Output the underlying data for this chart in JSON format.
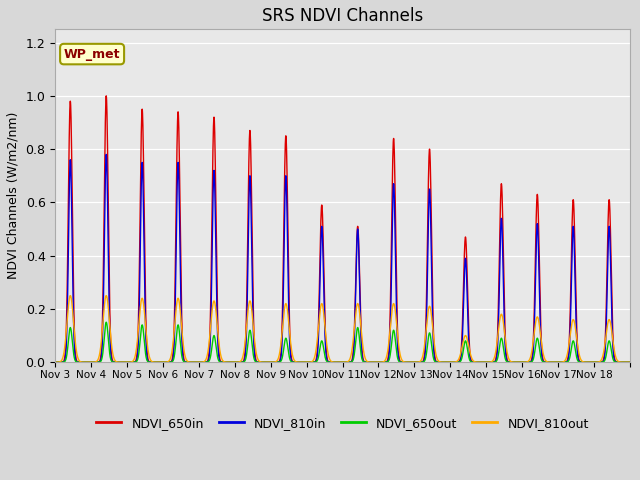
{
  "title": "SRS NDVI Channels",
  "ylabel": "NDVI Channels (W/m2/nm)",
  "annotation": "WP_met",
  "ylim": [
    0.0,
    1.25
  ],
  "fig_bg": "#d8d8d8",
  "plot_bg": "#e8e8e8",
  "colors": {
    "NDVI_650in": "#dd0000",
    "NDVI_810in": "#0000dd",
    "NDVI_650out": "#00cc00",
    "NDVI_810out": "#ffaa00"
  },
  "xtick_labels": [
    "Nov 3",
    "Nov 4",
    "Nov 5",
    "Nov 6",
    "Nov 7",
    "Nov 8",
    "Nov 9",
    "Nov 10",
    "Nov 11",
    "Nov 12",
    "Nov 13",
    "Nov 14",
    "Nov 15",
    "Nov 16",
    "Nov 17",
    "Nov 18"
  ],
  "peaks_650in": [
    0.98,
    1.0,
    0.95,
    0.94,
    0.92,
    0.87,
    0.85,
    0.59,
    0.51,
    0.84,
    0.8,
    0.47,
    0.67,
    0.63,
    0.61,
    0.61
  ],
  "peaks_810in": [
    0.76,
    0.78,
    0.75,
    0.75,
    0.72,
    0.7,
    0.7,
    0.51,
    0.5,
    0.67,
    0.65,
    0.39,
    0.54,
    0.52,
    0.51,
    0.51
  ],
  "peaks_650out": [
    0.13,
    0.15,
    0.14,
    0.14,
    0.1,
    0.12,
    0.09,
    0.08,
    0.13,
    0.12,
    0.11,
    0.08,
    0.09,
    0.09,
    0.08,
    0.08
  ],
  "peaks_810out": [
    0.25,
    0.25,
    0.24,
    0.24,
    0.23,
    0.23,
    0.22,
    0.22,
    0.22,
    0.22,
    0.21,
    0.1,
    0.18,
    0.17,
    0.16,
    0.16
  ],
  "pts_per_day": 200,
  "n_days": 16
}
